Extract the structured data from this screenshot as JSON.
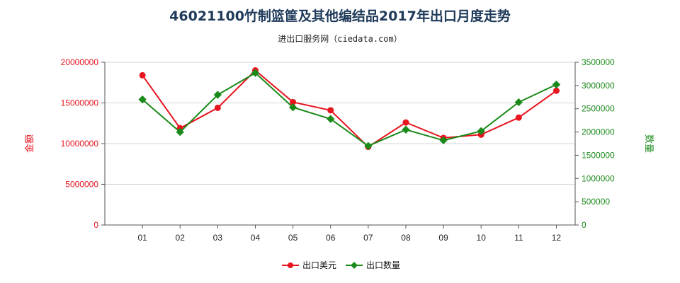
{
  "chart_data": {
    "type": "line",
    "title": "46021100竹制篮筐及其他编结品2017年出口月度走势",
    "subtitle": "进出口服务网（ciedata.com）",
    "categories": [
      "01",
      "02",
      "03",
      "04",
      "05",
      "06",
      "07",
      "08",
      "09",
      "10",
      "11",
      "12"
    ],
    "series": [
      {
        "name": "出口美元",
        "axis": "left",
        "color": "#e8141e",
        "values": [
          18400000,
          11900000,
          14400000,
          19000000,
          15100000,
          14100000,
          9600000,
          12600000,
          10700000,
          11100000,
          13200000,
          16500000
        ]
      },
      {
        "name": "出口数量",
        "axis": "right",
        "color": "#1a8a1a",
        "values": [
          2700000,
          2000000,
          2800000,
          3270000,
          2530000,
          2280000,
          1700000,
          2050000,
          1820000,
          2020000,
          2640000,
          3020000
        ]
      }
    ],
    "ylabel_left": "金额",
    "ylabel_right": "数量",
    "ylim_left": [
      0,
      20000000
    ],
    "ylim_right": [
      0,
      3500000
    ],
    "yticks_left": [
      "0",
      "5000000",
      "10000000",
      "15000000",
      "20000000"
    ],
    "yticks_right": [
      "0",
      "500000",
      "1000000",
      "1500000",
      "2000000",
      "2500000",
      "3000000",
      "3500000"
    ],
    "grid": true,
    "legend_position": "bottom"
  }
}
